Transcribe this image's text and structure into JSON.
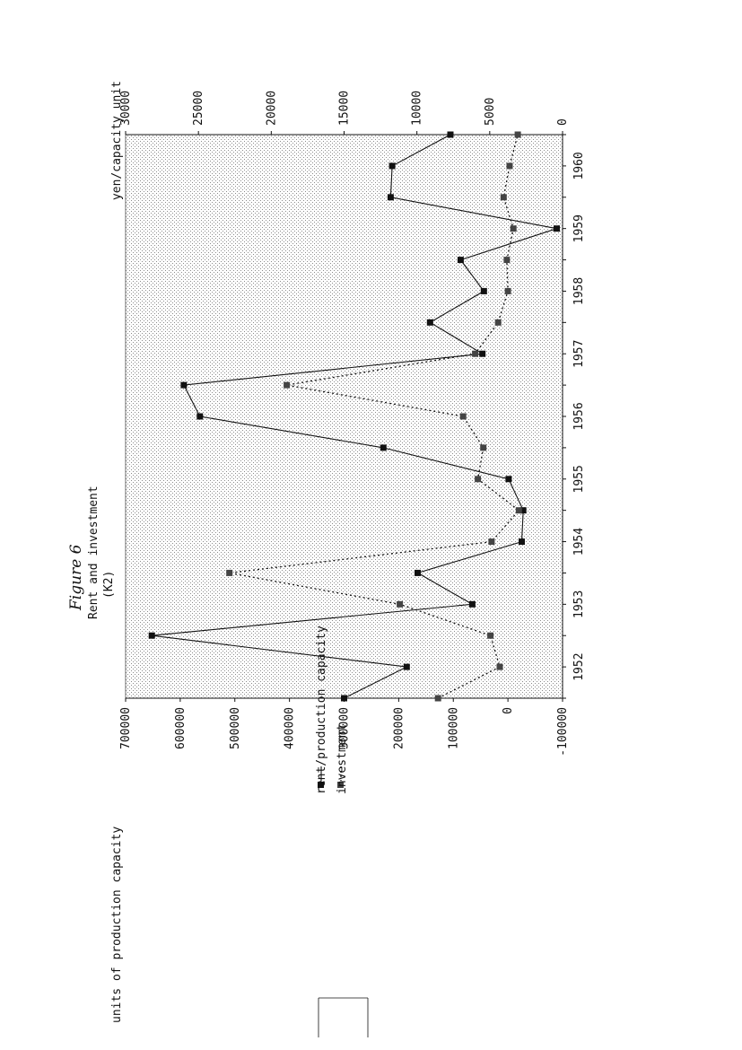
{
  "figure": {
    "title": "Figure 6",
    "subtitle": "Rent and investment",
    "note": "(K2)"
  },
  "chart_data": {
    "type": "line",
    "title": "Figure 6",
    "subtitle": "Rent and investment",
    "note": "(K2)",
    "y_left": {
      "label": "units of production capacity",
      "range": [
        -100000,
        700000
      ],
      "ticks": [
        "-100000",
        "0",
        "100000",
        "200000",
        "300000",
        "400000",
        "500000",
        "600000",
        "700000"
      ]
    },
    "y_right": {
      "label": "yen/capacity unit",
      "range": [
        0,
        30000
      ],
      "ticks": [
        "0",
        "5000",
        "10000",
        "15000",
        "20000",
        "25000",
        "30000"
      ]
    },
    "x": [
      "1951.5",
      "1952",
      "1952.5",
      "1953",
      "1953.5",
      "1954",
      "1954.5",
      "1955",
      "1955.5",
      "1956",
      "1956.5",
      "1957",
      "1957.5",
      "1958",
      "1958.5",
      "1959",
      "1959.5",
      "1960",
      "1960.5"
    ],
    "x_tick_labels": [
      "1952",
      "1953",
      "1954",
      "1955",
      "1956",
      "1957",
      "1958",
      "1959",
      "1960"
    ],
    "series": [
      {
        "name": "rent/production capacity",
        "axis": "yen/capacity unit",
        "style": "solid",
        "values": [
          15000,
          10700,
          28200,
          6200,
          9950,
          2800,
          2700,
          3700,
          12300,
          24900,
          26000,
          5500,
          9100,
          5400,
          7000,
          400,
          11800,
          11700,
          7700
        ]
      },
      {
        "name": "investment",
        "axis": "units of production capacity",
        "style": "dotted",
        "values": [
          128000,
          15000,
          32000,
          198000,
          510000,
          30000,
          -20000,
          55000,
          45000,
          82000,
          405000,
          60000,
          18000,
          0,
          2000,
          -10000,
          8000,
          -3000,
          -18000
        ]
      }
    ],
    "legend": {
      "placement": "right",
      "entries": [
        "rent/production capacity",
        "investment"
      ]
    },
    "grid": false,
    "background": "stippled"
  }
}
